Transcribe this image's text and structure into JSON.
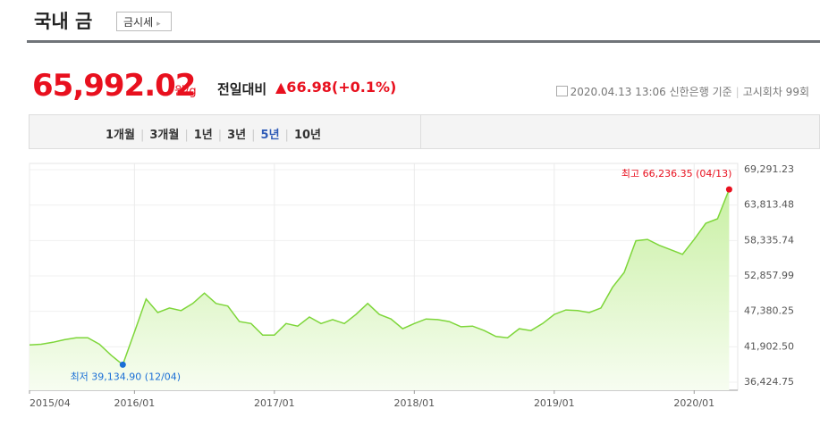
{
  "header": {
    "title": "국내 금",
    "button": "금시세",
    "price": "65,992.02",
    "unit": "원/g",
    "change_label": "전일대비",
    "change": "▲66.98(+0.1%)",
    "datetime": "2020.04.13 13:06",
    "bank": "신한은행 기준",
    "round": "고시회차 99회"
  },
  "tabs": [
    "1개월",
    "3개월",
    "1년",
    "3년",
    "5년",
    "10년"
  ],
  "selected_tab": "5년",
  "chart_data": {
    "type": "area",
    "x": [
      "2015/04",
      "2015/05",
      "2015/06",
      "2015/07",
      "2015/08",
      "2015/09",
      "2015/10",
      "2015/11",
      "2015/12",
      "2016/01",
      "2016/02",
      "2016/03",
      "2016/04",
      "2016/05",
      "2016/06",
      "2016/07",
      "2016/08",
      "2016/09",
      "2016/10",
      "2016/11",
      "2016/12",
      "2017/01",
      "2017/02",
      "2017/03",
      "2017/04",
      "2017/05",
      "2017/06",
      "2017/07",
      "2017/08",
      "2017/09",
      "2017/10",
      "2017/11",
      "2017/12",
      "2018/01",
      "2018/02",
      "2018/03",
      "2018/04",
      "2018/05",
      "2018/06",
      "2018/07",
      "2018/08",
      "2018/09",
      "2018/10",
      "2018/11",
      "2018/12",
      "2019/01",
      "2019/02",
      "2019/03",
      "2019/04",
      "2019/05",
      "2019/06",
      "2019/07",
      "2019/08",
      "2019/09",
      "2019/10",
      "2019/11",
      "2019/12",
      "2020/01",
      "2020/02",
      "2020/03",
      "2020/04"
    ],
    "series": [
      {
        "color": "#7ed63a",
        "values": [
          42200,
          42300,
          42600,
          43000,
          43300,
          43300,
          42300,
          40600,
          39134.9,
          44200,
          49300,
          47200,
          47900,
          47500,
          48600,
          50200,
          48600,
          48200,
          45800,
          45500,
          43700,
          43700,
          45500,
          45100,
          46500,
          45500,
          46100,
          45500,
          46900,
          48600,
          46900,
          46200,
          44700,
          45500,
          46200,
          46100,
          45800,
          45000,
          45100,
          44400,
          43500,
          43300,
          44700,
          44400,
          45500,
          46900,
          47600,
          47500,
          47200,
          47900,
          51100,
          53400,
          58300,
          58500,
          57600,
          56900,
          56200,
          58500,
          61000,
          61700,
          66236.35
        ]
      }
    ],
    "xticks": [
      "2015/04",
      "2016/01",
      "2017/01",
      "2018/01",
      "2019/01",
      "2020/01"
    ],
    "ylim": [
      36424.75,
      69291.23
    ],
    "yticks": [
      {
        "value": 69291.23,
        "label": "69,291.23"
      },
      {
        "value": 63813.48,
        "label": "63,813.48"
      },
      {
        "value": 58335.74,
        "label": "58,335.74"
      },
      {
        "value": 52857.99,
        "label": "52,857.99"
      },
      {
        "value": 47380.25,
        "label": "47,380.25"
      },
      {
        "value": 41902.5,
        "label": "41,902.50"
      },
      {
        "value": 36424.75,
        "label": "36,424.75"
      }
    ],
    "grid": true,
    "annotations": [
      {
        "label": "최고 66,236.35 (04/13)",
        "value": 66236.35,
        "color": "#e8101e"
      },
      {
        "label": "최저 39,134.90 (12/04)",
        "value": 39134.9,
        "color": "#1a6fd6"
      }
    ]
  }
}
